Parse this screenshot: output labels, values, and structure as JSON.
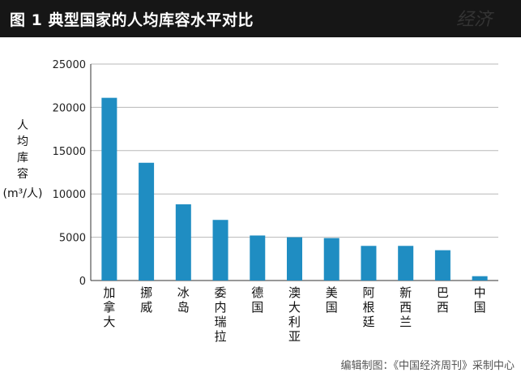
{
  "header": {
    "title": "图 1  典型国家的人均库容水平对比"
  },
  "y_axis_label": {
    "lines": [
      "人",
      "均",
      "库",
      "容"
    ],
    "unit": "(m³/人)"
  },
  "footer": {
    "credit": "编辑制图：《中国经济周刊》采制中心"
  },
  "colors": {
    "bar": "#1f8dc2",
    "grid": "#b8b8b8",
    "axis": "#333333"
  },
  "chart_data": {
    "type": "bar",
    "title": "典型国家的人均库容水平对比",
    "ylabel": "人均库容 (m³/人)",
    "xlabel": "",
    "ylim": [
      0,
      25000
    ],
    "yticks": [
      0,
      5000,
      10000,
      15000,
      20000,
      25000
    ],
    "grid": true,
    "categories": [
      "加拿大",
      "挪威",
      "冰岛",
      "委内瑞拉",
      "德国",
      "澳大利亚",
      "美国",
      "阿根廷",
      "新西兰",
      "巴西",
      "中国"
    ],
    "values": [
      21100,
      13600,
      8800,
      7000,
      5200,
      5000,
      4900,
      4000,
      4000,
      3500,
      500
    ]
  }
}
